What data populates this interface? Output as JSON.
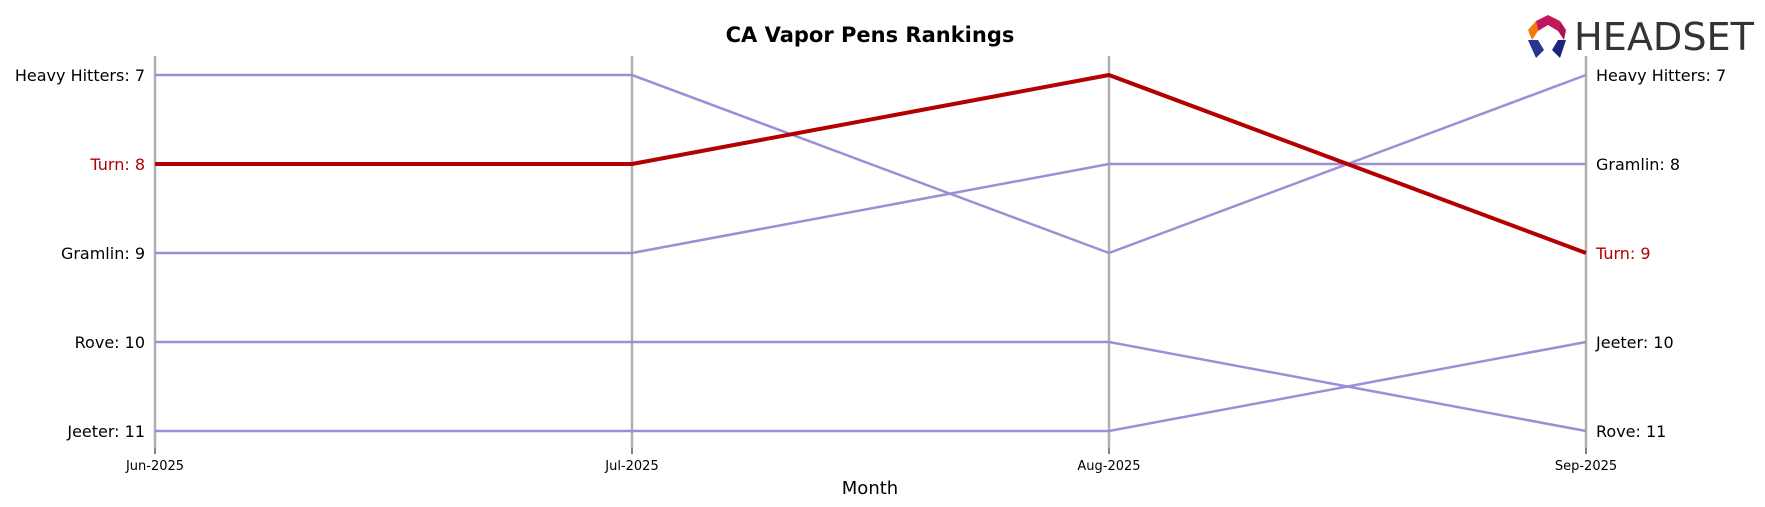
{
  "chart_data": {
    "type": "line",
    "title": "CA Vapor Pens Rankings",
    "xlabel": "Month",
    "ylabel": "",
    "categories": [
      "Jun-2025",
      "Jul-2025",
      "Aug-2025",
      "Sep-2025"
    ],
    "y_inverted": true,
    "ylim": [
      7,
      11
    ],
    "grid": "vertical lines at each month",
    "series": [
      {
        "name": "Heavy Hitters",
        "values": [
          7,
          7,
          9,
          7
        ],
        "color": "#9b8fd6",
        "highlight": false
      },
      {
        "name": "Turn",
        "values": [
          8,
          8,
          7,
          9
        ],
        "color": "#b30000",
        "highlight": true
      },
      {
        "name": "Gramlin",
        "values": [
          9,
          9,
          8,
          8
        ],
        "color": "#9b8fd6",
        "highlight": false
      },
      {
        "name": "Rove",
        "values": [
          10,
          10,
          10,
          11
        ],
        "color": "#9b8fd6",
        "highlight": false
      },
      {
        "name": "Jeeter",
        "values": [
          11,
          11,
          11,
          10
        ],
        "color": "#9b8fd6",
        "highlight": false
      }
    ],
    "left_labels": [
      {
        "text": "Heavy Hitters: 7",
        "rank": 7,
        "highlight": false
      },
      {
        "text": "Turn: 8",
        "rank": 8,
        "highlight": true
      },
      {
        "text": "Gramlin: 9",
        "rank": 9,
        "highlight": false
      },
      {
        "text": "Rove: 10",
        "rank": 10,
        "highlight": false
      },
      {
        "text": "Jeeter: 11",
        "rank": 11,
        "highlight": false
      }
    ],
    "right_labels": [
      {
        "text": "Heavy Hitters: 7",
        "rank": 7,
        "highlight": false
      },
      {
        "text": "Gramlin: 8",
        "rank": 8,
        "highlight": false
      },
      {
        "text": "Turn: 9",
        "rank": 9,
        "highlight": true
      },
      {
        "text": "Jeeter: 10",
        "rank": 10,
        "highlight": false
      },
      {
        "text": "Rove: 11",
        "rank": 11,
        "highlight": false
      }
    ]
  },
  "logo": {
    "text": "HEADSET"
  },
  "colors": {
    "highlight": "#b30000",
    "muted": "#9b8fd6",
    "grid": "#b0b0b0",
    "text": "#000000"
  }
}
